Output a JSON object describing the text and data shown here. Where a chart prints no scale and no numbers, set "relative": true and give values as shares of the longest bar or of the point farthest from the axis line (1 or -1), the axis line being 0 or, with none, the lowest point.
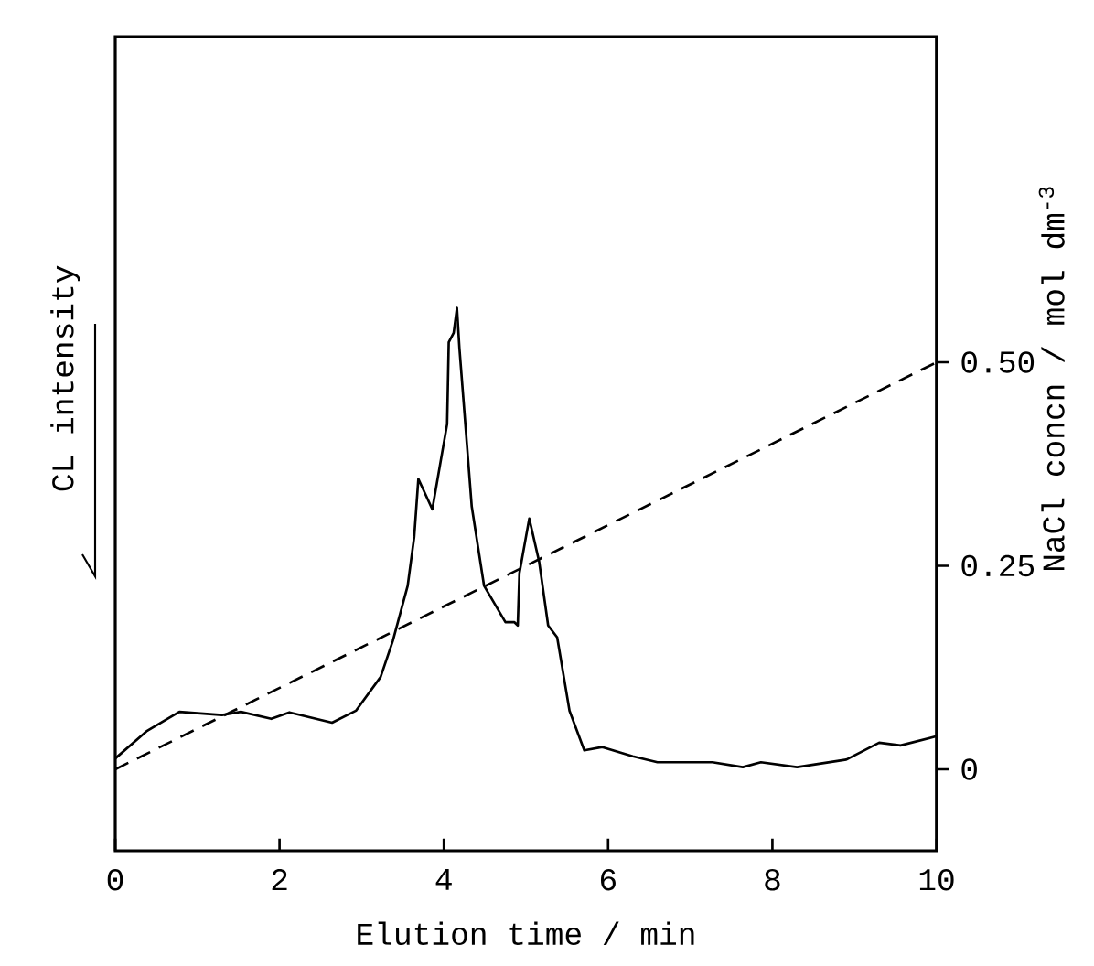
{
  "chart_data": {
    "type": "line",
    "xlabel": "Elution time / min",
    "ylabel": "CL intensity",
    "y2label": "NaCl concn / mol dm$^{-3}$",
    "relative": true,
    "xlim": [
      0,
      10
    ],
    "xticks": [
      0,
      2,
      4,
      6,
      8,
      10
    ],
    "y2lim": [
      -0.1,
      0.9
    ],
    "y2ticks": [
      0,
      {
        "value": 0.25,
        "label": "0.25"
      },
      {
        "value": 0.5,
        "label": "0.50"
      }
    ],
    "series": [
      {
        "color": "#000000",
        "x": [
          0,
          0.38,
          0.78,
          1.3,
          1.53,
          1.9,
          2.12,
          2.64,
          2.93,
          3.23,
          3.38,
          3.56,
          3.64,
          3.69,
          3.86,
          4.04,
          4.06,
          4.12,
          4.16,
          4.19,
          4.34,
          4.49,
          4.75,
          4.86,
          4.9,
          4.92,
          5.04,
          5.16,
          5.27,
          5.38,
          5.53,
          5.71,
          5.93,
          6.3,
          6.6,
          7.27,
          7.64,
          7.86,
          8.3,
          8.9,
          9.3,
          9.56,
          10
        ],
        "values": [
          0.17,
          0.22,
          0.256,
          0.25,
          0.256,
          0.243,
          0.255,
          0.236,
          0.258,
          0.32,
          0.387,
          0.488,
          0.579,
          0.685,
          0.629,
          0.786,
          0.937,
          0.954,
          1.0,
          0.926,
          0.634,
          0.488,
          0.421,
          0.421,
          0.415,
          0.511,
          0.612,
          0.533,
          0.415,
          0.393,
          0.258,
          0.185,
          0.191,
          0.174,
          0.163,
          0.163,
          0.154,
          0.163,
          0.154,
          0.168,
          0.199,
          0.194,
          0.211
        ]
      },
      {
        "color": "#000000",
        "axis": "y2",
        "line_style": "dashed",
        "x": [
          0,
          10
        ],
        "values": [
          0,
          0.5
        ]
      }
    ]
  }
}
